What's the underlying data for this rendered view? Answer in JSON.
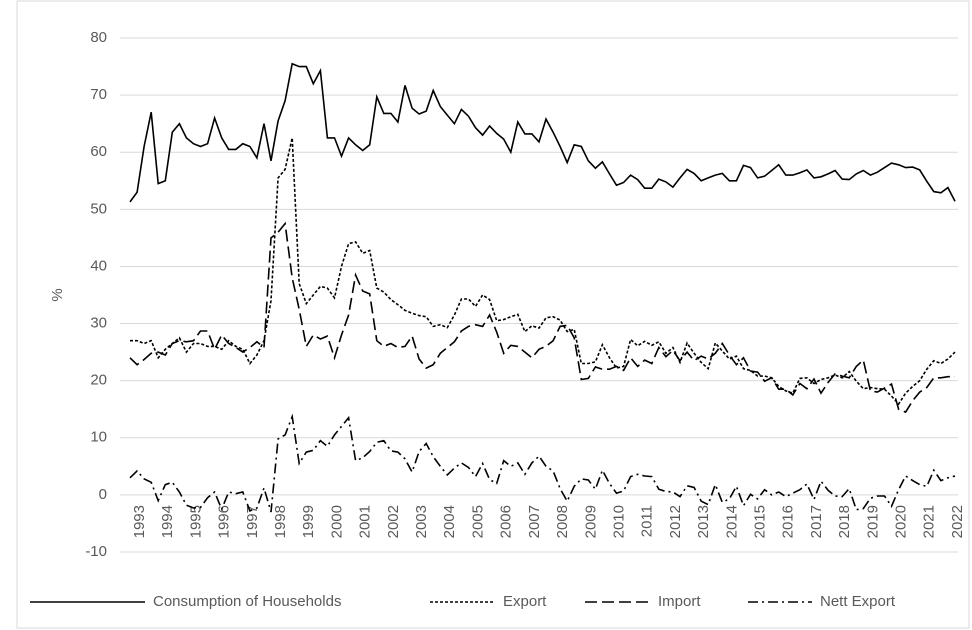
{
  "chart_data": {
    "type": "line",
    "y_label": "%",
    "ylim": [
      -10,
      80
    ],
    "yticks": [
      -10,
      0,
      10,
      20,
      30,
      40,
      50,
      60,
      70,
      80
    ],
    "grid": true,
    "legend": "bottom",
    "categories": [
      "1993",
      null,
      null,
      null,
      "1994",
      null,
      null,
      null,
      "1995",
      null,
      null,
      null,
      "1996",
      null,
      null,
      null,
      "1997",
      null,
      null,
      null,
      "1998",
      null,
      null,
      null,
      "1999",
      null,
      null,
      null,
      "2000",
      null,
      null,
      null,
      "2001",
      null,
      null,
      null,
      "2002",
      null,
      null,
      null,
      "2003",
      null,
      null,
      null,
      "2004",
      null,
      null,
      null,
      "2005",
      null,
      null,
      null,
      "2006",
      null,
      null,
      null,
      "2007",
      null,
      null,
      null,
      "2008",
      null,
      null,
      null,
      "2009",
      null,
      null,
      null,
      "2010",
      null,
      null,
      null,
      "2011",
      null,
      null,
      null,
      "2012",
      null,
      null,
      null,
      "2013",
      null,
      null,
      null,
      "2014",
      null,
      null,
      null,
      "2015",
      null,
      null,
      null,
      "2016",
      null,
      null,
      null,
      "2017",
      null,
      null,
      null,
      "2018",
      null,
      null,
      null,
      "2019",
      null,
      null,
      null,
      "2020",
      null,
      null,
      null,
      "2021",
      null,
      null,
      null,
      "2022",
      null
    ],
    "series": [
      {
        "name": "Consumption of Households",
        "color": "#000000",
        "line_style": "solid",
        "values": [
          51.3,
          53,
          61,
          67,
          54.5,
          55,
          63.5,
          65,
          62.5,
          61.5,
          61,
          61.5,
          66,
          62.5,
          60.5,
          60.5,
          61.5,
          61,
          59,
          65,
          58.5,
          65.5,
          69,
          75.5,
          75,
          75,
          72,
          74.3,
          62.5,
          62.5,
          59.3,
          62.5,
          61.3,
          60.3,
          61.3,
          69.7,
          66.8,
          66.8,
          65.3,
          71.7,
          67.7,
          66.7,
          67.2,
          70.8,
          68,
          66.5,
          65,
          67.5,
          66.3,
          64.3,
          63,
          64.6,
          63.3,
          62.3,
          60,
          65.3,
          63.2,
          63.2,
          61.8,
          65.8,
          63.5,
          61,
          58.2,
          61.3,
          61,
          58.5,
          57.2,
          58.3,
          56.2,
          54.2,
          54.7,
          56,
          55.2,
          53.7,
          53.7,
          55.3,
          54.8,
          53.9,
          55.5,
          57,
          56.3,
          55,
          55.5,
          56,
          56.3,
          55,
          55,
          57.7,
          57.3,
          55.5,
          55.8,
          56.8,
          57.8,
          56,
          56,
          56.4,
          56.9,
          55.5,
          55.7,
          56.2,
          56.8,
          55.3,
          55.2,
          56.2,
          56.8,
          56,
          56.5,
          57.3,
          58.1,
          57.8,
          57.3,
          57.4,
          56.9,
          54.9,
          53.1,
          52.9,
          53.8,
          51.4
        ]
      },
      {
        "name": "Export",
        "color": "#000000",
        "line_style": "dotted",
        "values": [
          27,
          27,
          26.5,
          27,
          24,
          25.5,
          26.5,
          27.5,
          25,
          26.5,
          26.5,
          26,
          26,
          25.5,
          27,
          26,
          25.5,
          23,
          24.5,
          27,
          34,
          55.5,
          57,
          62.5,
          37,
          33.5,
          35,
          36.5,
          36.2,
          34.5,
          40,
          44,
          44.3,
          42.3,
          42.8,
          36.2,
          35.5,
          34.2,
          33.3,
          32.3,
          31.8,
          31.4,
          31.2,
          29.5,
          29.8,
          29.3,
          31.5,
          34.3,
          34.3,
          33,
          35,
          34.2,
          30.5,
          30.7,
          31.2,
          31.6,
          28.6,
          29.6,
          29.2,
          31,
          31.2,
          30.6,
          28.6,
          29,
          23,
          23,
          23.3,
          26.3,
          24,
          22.2,
          22.5,
          27.2,
          26.1,
          26.9,
          26.2,
          26.8,
          24.8,
          25.8,
          23.2,
          26.6,
          24.8,
          23.2,
          22.1,
          26.6,
          25.2,
          23.8,
          24.3,
          22.1,
          21.8,
          20.8,
          20.8,
          20.5,
          19,
          18.2,
          17.8,
          20.4,
          20.5,
          19.5,
          20.2,
          20.5,
          21,
          20.5,
          21.6,
          19.9,
          18.6,
          18.8,
          18.6,
          18.5,
          17.3,
          15.9,
          17.8,
          19,
          20,
          22,
          23.5,
          23,
          23.8,
          25
        ]
      },
      {
        "name": "Import",
        "color": "#000000",
        "line_style": "dashed",
        "values": [
          24,
          22.8,
          23.7,
          24.8,
          25,
          24.5,
          26.5,
          27,
          26.8,
          27,
          28.7,
          28.7,
          25.5,
          28,
          26.5,
          25.8,
          25,
          25.8,
          26.8,
          25.8,
          45,
          46,
          47.5,
          38,
          32.5,
          26,
          28,
          27.3,
          27.8,
          24,
          28,
          31.5,
          38.5,
          35.7,
          35.2,
          27,
          26,
          26.5,
          25.8,
          26,
          27.8,
          23.8,
          22.2,
          22.8,
          24.8,
          25.8,
          26.8,
          28.7,
          29.5,
          29.8,
          29.5,
          31.5,
          28.5,
          24.8,
          26.2,
          26,
          25,
          24,
          25.5,
          26,
          27,
          29.5,
          29.7,
          27.5,
          20.2,
          20.4,
          22.4,
          22,
          22,
          22.5,
          21.8,
          24,
          22.5,
          23.6,
          23,
          25.8,
          24.2,
          25.3,
          23.5,
          25,
          23.5,
          24.3,
          23.8,
          24.8,
          26.5,
          24.5,
          22.8,
          24,
          21.7,
          21.5,
          19.9,
          20.5,
          18.5,
          18.5,
          17.5,
          19.5,
          18.6,
          20.3,
          17.8,
          19.7,
          21.2,
          20.8,
          20.5,
          22.5,
          23.6,
          18.2,
          18,
          18.7,
          19.4,
          15,
          14.5,
          16.5,
          18,
          18.8,
          20.5,
          20.5,
          20.7,
          20.7
        ]
      },
      {
        "name": "Nett Export",
        "color": "#000000",
        "line_style": "dashdot",
        "values": [
          3,
          4.2,
          2.8,
          2.2,
          -1,
          1.8,
          2.2,
          0.5,
          -1.8,
          -2.3,
          -2.2,
          -0.5,
          0.5,
          -2.5,
          0.5,
          0.2,
          0.5,
          -2.8,
          -2.3,
          1.2,
          -3,
          9.8,
          10.5,
          13.7,
          5.5,
          7.5,
          7.8,
          9.5,
          8.5,
          10.5,
          12,
          13.5,
          6,
          6.5,
          7.6,
          9.2,
          9.5,
          7.7,
          7.5,
          6.3,
          4,
          7.6,
          9,
          6.7,
          5,
          3.5,
          4.7,
          5.6,
          4.8,
          3.2,
          5.5,
          2.7,
          2,
          6,
          5,
          5.6,
          3.6,
          5.6,
          6.8,
          5,
          4.2,
          1.1,
          -1.1,
          1.5,
          2.8,
          2.6,
          1,
          4.3,
          2,
          0.3,
          0.7,
          3.2,
          3.6,
          3.3,
          3.2,
          1,
          0.6,
          0.5,
          -0.3,
          1.6,
          1.3,
          -1.1,
          -1.7,
          1.8,
          -1.3,
          -0.7,
          1.5,
          -1.9,
          0.1,
          -0.7,
          0.9,
          0,
          0.5,
          -0.3,
          0.3,
          0.9,
          1.9,
          -0.8,
          2.4,
          0.8,
          -0.2,
          -0.3,
          1.1,
          -2.6,
          -2.4,
          -0.6,
          -0.2,
          -0.2,
          -2,
          0.9,
          3.3,
          2.5,
          1.8,
          1.5,
          4.3,
          2.5,
          3,
          3.3
        ]
      }
    ]
  }
}
